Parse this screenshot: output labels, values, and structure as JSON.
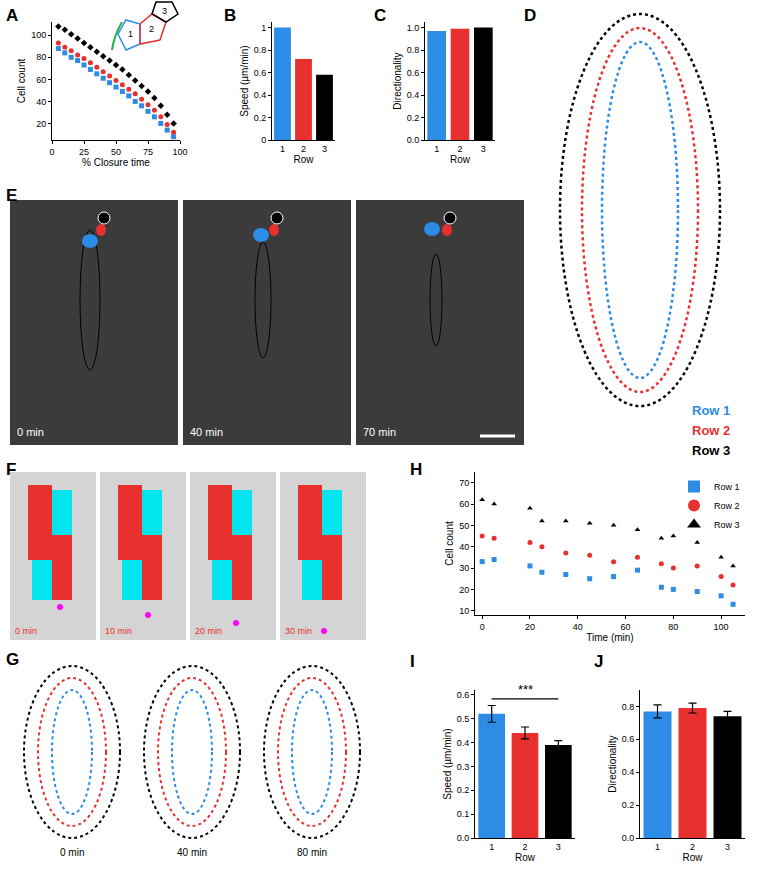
{
  "chart_data": [
    {
      "panel": "A",
      "type": "scatter",
      "xlabel": "% Closure time",
      "ylabel": "Cell count",
      "x": [
        5,
        10,
        15,
        20,
        25,
        30,
        35,
        40,
        45,
        50,
        55,
        60,
        65,
        70,
        75,
        80,
        85,
        90,
        95
      ],
      "series": [
        {
          "color": "#2d8ce6",
          "marker": "square",
          "values": [
            88,
            84,
            80,
            77,
            73,
            69,
            65,
            61,
            57,
            53,
            49,
            45,
            40,
            36,
            31,
            26,
            20,
            14,
            8
          ]
        },
        {
          "color": "#e8302e",
          "marker": "circle",
          "values": [
            93,
            89,
            86,
            82,
            79,
            75,
            71,
            67,
            63,
            59,
            55,
            51,
            47,
            42,
            37,
            32,
            26,
            19,
            12
          ]
        },
        {
          "color": "#000000",
          "marker": "diamond",
          "values": [
            108,
            105,
            101,
            97,
            93,
            89,
            85,
            81,
            77,
            73,
            69,
            64,
            59,
            54,
            49,
            43,
            36,
            28,
            20
          ]
        }
      ],
      "xlim": [
        0,
        100
      ],
      "xticks": [
        0,
        25,
        50,
        75,
        100
      ],
      "ylim": [
        5,
        112
      ],
      "yticks": [
        20,
        40,
        60,
        80,
        100
      ],
      "annotations": [
        "1",
        "2",
        "3"
      ]
    },
    {
      "panel": "B",
      "type": "bar",
      "xlabel": "Row",
      "ylabel": "Speed (µm/min)",
      "categories": [
        "1",
        "2",
        "3"
      ],
      "values": [
        1.0,
        0.72,
        0.58
      ],
      "colors": [
        "#2d8ce6",
        "#e8302e",
        "#000000"
      ],
      "ylim": [
        0,
        1.05
      ],
      "yticks": [
        0,
        0.2,
        0.4,
        0.6,
        0.8,
        1
      ]
    },
    {
      "panel": "C",
      "type": "bar",
      "xlabel": "Row",
      "ylabel": "Directionality",
      "categories": [
        "1",
        "2",
        "3"
      ],
      "values": [
        0.97,
        0.99,
        1.0
      ],
      "colors": [
        "#2d8ce6",
        "#e8302e",
        "#000000"
      ],
      "ylim": [
        0,
        1.05
      ],
      "yticks": [
        {
          "value": 0,
          "label": "0.0"
        },
        0.2,
        0.4,
        0.6,
        0.8,
        {
          "value": 1,
          "label": "1.0"
        }
      ]
    },
    {
      "panel": "H",
      "type": "scatter",
      "xlabel": "Time (min)",
      "ylabel": "Cell count",
      "legend": "top-right",
      "x": [
        0,
        5,
        20,
        25,
        35,
        45,
        55,
        65,
        75,
        80,
        90,
        100,
        105
      ],
      "series": [
        {
          "name": "Row 1",
          "color": "#2d8ce6",
          "marker": "square",
          "values": [
            33,
            34,
            31,
            28,
            27,
            25,
            26,
            29,
            21,
            20,
            19,
            17,
            13
          ]
        },
        {
          "name": "Row 2",
          "color": "#e8302e",
          "marker": "circle",
          "values": [
            45,
            44,
            42,
            40,
            37,
            36,
            33,
            35,
            32,
            30,
            31,
            26,
            22
          ]
        },
        {
          "name": "Row 3",
          "color": "#000000",
          "marker": "triangle-up",
          "values": [
            62,
            60,
            58,
            52,
            52,
            51,
            50,
            48,
            44,
            45,
            42,
            35,
            31
          ]
        }
      ],
      "xlim": [
        -3,
        110
      ],
      "xticks": [
        0,
        20,
        40,
        60,
        80,
        100
      ],
      "ylim": [
        8,
        75
      ],
      "yticks": [
        10,
        20,
        30,
        40,
        50,
        60,
        70
      ]
    },
    {
      "panel": "I",
      "type": "bar",
      "xlabel": "Row",
      "ylabel": "Speed (µm/min)",
      "categories": [
        "1",
        "2",
        "3"
      ],
      "values": [
        0.52,
        0.44,
        0.39
      ],
      "errors": [
        0.035,
        0.025,
        0.018
      ],
      "colors": [
        "#2d8ce6",
        "#e8302e",
        "#000000"
      ],
      "ylim": [
        0,
        0.62
      ],
      "yticks": [
        {
          "value": 0,
          "label": "0.0"
        },
        0.1,
        0.2,
        0.3,
        0.4,
        0.5,
        0.6
      ],
      "significance": "***"
    },
    {
      "panel": "J",
      "type": "bar",
      "xlabel": "Row",
      "ylabel": "Directionality",
      "categories": [
        "1",
        "2",
        "3"
      ],
      "values": [
        0.77,
        0.79,
        0.74
      ],
      "errors": [
        0.04,
        0.03,
        0.03
      ],
      "colors": [
        "#2d8ce6",
        "#e8302e",
        "#000000"
      ],
      "ylim": [
        0,
        0.9
      ],
      "yticks": [
        {
          "value": 0,
          "label": "0.0"
        },
        0.2,
        0.4,
        0.6,
        0.8
      ]
    }
  ],
  "panels": {
    "D": {
      "panel": "D",
      "rows": [
        "Row 1",
        "Row 2",
        "Row 3"
      ],
      "colors": [
        "#2d8ce6",
        "#e8302e",
        "#000000"
      ]
    },
    "E": {
      "panel": "E",
      "times": [
        "0 min",
        "40 min",
        "70 min"
      ]
    },
    "F": {
      "panel": "F",
      "times": [
        "0 min",
        "10 min",
        "20 min",
        "30 min"
      ]
    },
    "G": {
      "panel": "G",
      "times": [
        "0 min",
        "40 min",
        "80 min"
      ]
    }
  }
}
